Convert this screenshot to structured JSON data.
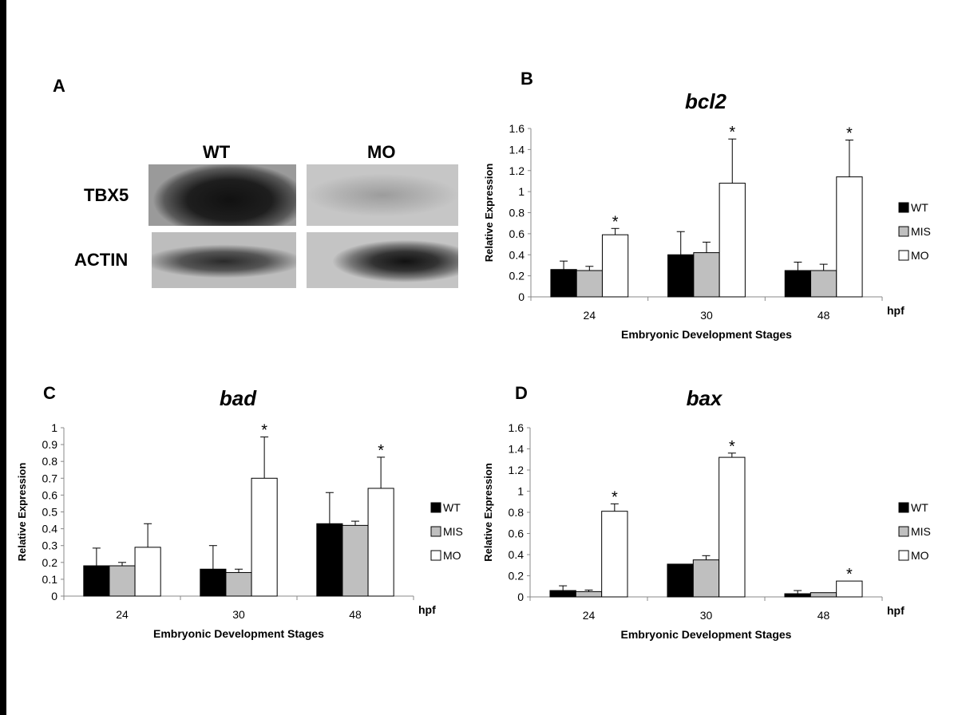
{
  "panel_a": {
    "letter": "A",
    "columns": [
      "WT",
      "MO"
    ],
    "rows": [
      "TBX5",
      "ACTIN"
    ]
  },
  "chart_data": [
    {
      "panel": "B",
      "type": "bar",
      "title": "bcl2",
      "xlabel": "Embryonic Development Stages",
      "ylabel": "Relative Expression",
      "x_unit": "hpf",
      "categories": [
        "24",
        "30",
        "48"
      ],
      "ylim": [
        0,
        1.6
      ],
      "yticks": [
        "0",
        "0.2",
        "0.4",
        "0.6",
        "0.8",
        "1",
        "1.2",
        "1.4",
        "1.6"
      ],
      "series": [
        {
          "name": "WT",
          "color": "#000000",
          "values": [
            0.26,
            0.4,
            0.25
          ],
          "errors": [
            0.08,
            0.22,
            0.08
          ],
          "sig": [
            false,
            false,
            false
          ]
        },
        {
          "name": "MIS",
          "color": "#bfbfbf",
          "values": [
            0.25,
            0.42,
            0.25
          ],
          "errors": [
            0.04,
            0.1,
            0.06
          ],
          "sig": [
            false,
            false,
            false
          ]
        },
        {
          "name": "MO",
          "color": "#ffffff",
          "values": [
            0.59,
            1.08,
            1.14
          ],
          "errors": [
            0.06,
            0.42,
            0.35
          ],
          "sig": [
            true,
            true,
            true
          ]
        }
      ],
      "significance_marker": "*",
      "legend_position": "right"
    },
    {
      "panel": "C",
      "type": "bar",
      "title": "bad",
      "xlabel": "Embryonic Development Stages",
      "ylabel": "Relative Expression",
      "x_unit": "hpf",
      "categories": [
        "24",
        "30",
        "48"
      ],
      "ylim": [
        0,
        1
      ],
      "yticks": [
        "0",
        "0.1",
        "0.2",
        "0.3",
        "0.4",
        "0.5",
        "0.6",
        "0.7",
        "0.8",
        "0.9",
        "1"
      ],
      "series": [
        {
          "name": "WT",
          "color": "#000000",
          "values": [
            0.18,
            0.16,
            0.43
          ],
          "errors": [
            0.105,
            0.14,
            0.185
          ],
          "sig": [
            false,
            false,
            false
          ]
        },
        {
          "name": "MIS",
          "color": "#bfbfbf",
          "values": [
            0.18,
            0.14,
            0.42
          ],
          "errors": [
            0.02,
            0.02,
            0.025
          ],
          "sig": [
            false,
            false,
            false
          ]
        },
        {
          "name": "MO",
          "color": "#ffffff",
          "values": [
            0.29,
            0.7,
            0.64
          ],
          "errors": [
            0.14,
            0.245,
            0.185
          ],
          "sig": [
            false,
            true,
            true
          ]
        }
      ],
      "significance_marker": "*",
      "legend_position": "right"
    },
    {
      "panel": "D",
      "type": "bar",
      "title": "bax",
      "xlabel": "Embryonic Development Stages",
      "ylabel": "Relative Expression",
      "x_unit": "hpf",
      "categories": [
        "24",
        "30",
        "48"
      ],
      "ylim": [
        0,
        1.6
      ],
      "yticks": [
        "0",
        "0.2",
        "0.4",
        "0.6",
        "0.8",
        "1",
        "1.2",
        "1.4",
        "1.6"
      ],
      "series": [
        {
          "name": "WT",
          "color": "#000000",
          "values": [
            0.06,
            0.31,
            0.03
          ],
          "errors": [
            0.045,
            0.0,
            0.03
          ],
          "sig": [
            false,
            false,
            false
          ]
        },
        {
          "name": "MIS",
          "color": "#bfbfbf",
          "values": [
            0.05,
            0.35,
            0.04
          ],
          "errors": [
            0.015,
            0.04,
            0.0
          ],
          "sig": [
            false,
            false,
            false
          ]
        },
        {
          "name": "MO",
          "color": "#ffffff",
          "values": [
            0.81,
            1.32,
            0.15
          ],
          "errors": [
            0.07,
            0.04,
            0.0
          ],
          "sig": [
            true,
            true,
            true
          ]
        }
      ],
      "significance_marker": "*",
      "legend_position": "right"
    }
  ]
}
